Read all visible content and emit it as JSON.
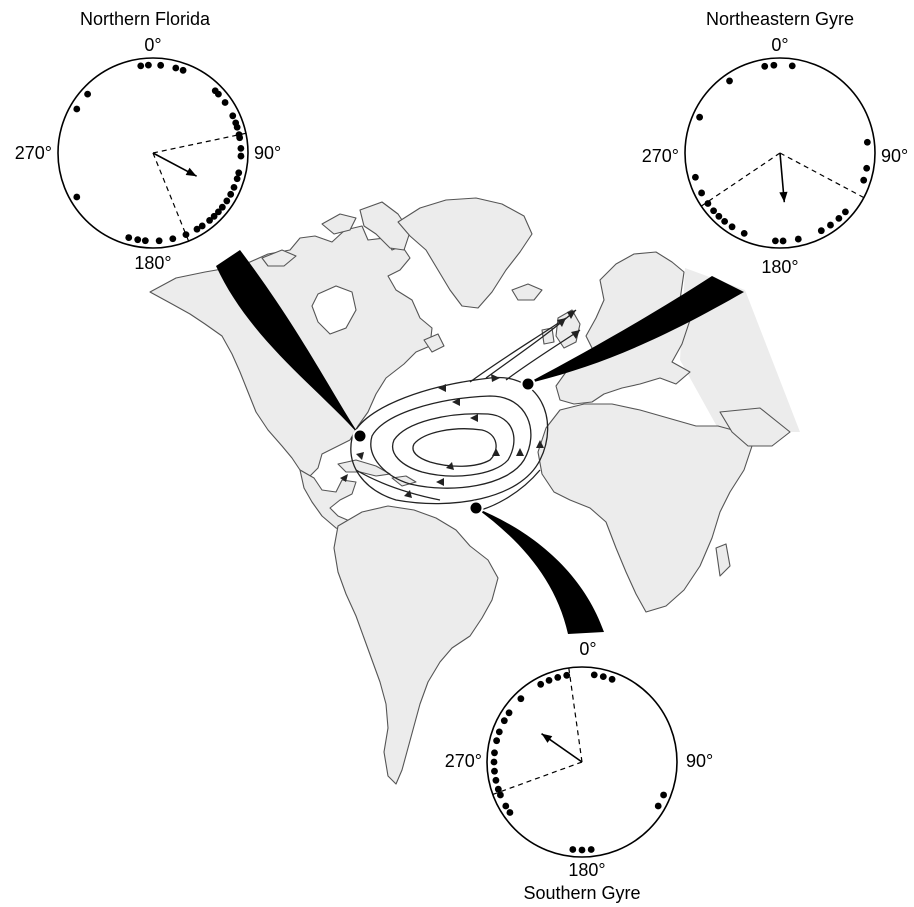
{
  "diagram": {
    "colors": {
      "land": "#ececec",
      "coast": "#555555",
      "ink": "#000000",
      "background": "#ffffff"
    },
    "plots": [
      {
        "id": "northern-florida",
        "title": "Northern Florida",
        "labels": {
          "top": "0°",
          "right": "90°",
          "bottom": "180°",
          "left": "270°"
        },
        "mean_bearing_deg": 118,
        "confidence_bearings_deg": [
          78,
          158
        ],
        "headings_deg": [
          352,
          357,
          5,
          15,
          20,
          45,
          48,
          55,
          65,
          70,
          73,
          78,
          80,
          87,
          92,
          103,
          107,
          113,
          118,
          123,
          128,
          132,
          136,
          140,
          146,
          150,
          158,
          167,
          176,
          185,
          190,
          196,
          240,
          300,
          312
        ]
      },
      {
        "id": "northeastern-gyre",
        "title": "Northeastern Gyre",
        "labels": {
          "top": "0°",
          "right": "90°",
          "bottom": "180°",
          "left": "270°"
        },
        "mean_bearing_deg": 175,
        "confidence_bearings_deg": [
          118,
          236
        ],
        "headings_deg": [
          350,
          356,
          8,
          83,
          100,
          108,
          132,
          138,
          145,
          152,
          168,
          178,
          183,
          204,
          213,
          219,
          224,
          229,
          235,
          243,
          254,
          294,
          325
        ]
      },
      {
        "id": "southern-gyre",
        "title": "Southern Gyre",
        "labels": {
          "top": "0°",
          "right": "90°",
          "bottom": "180°",
          "left": "270°"
        },
        "mean_bearing_deg": 305,
        "confidence_bearings_deg": [
          250,
          352
        ],
        "headings_deg": [
          8,
          14,
          20,
          112,
          120,
          174,
          180,
          186,
          235,
          240,
          248,
          252,
          258,
          264,
          270,
          276,
          284,
          290,
          298,
          304,
          316,
          332,
          338,
          344,
          350
        ]
      }
    ],
    "sites": [
      "northern-florida",
      "northeastern-gyre",
      "southern-gyre"
    ]
  }
}
